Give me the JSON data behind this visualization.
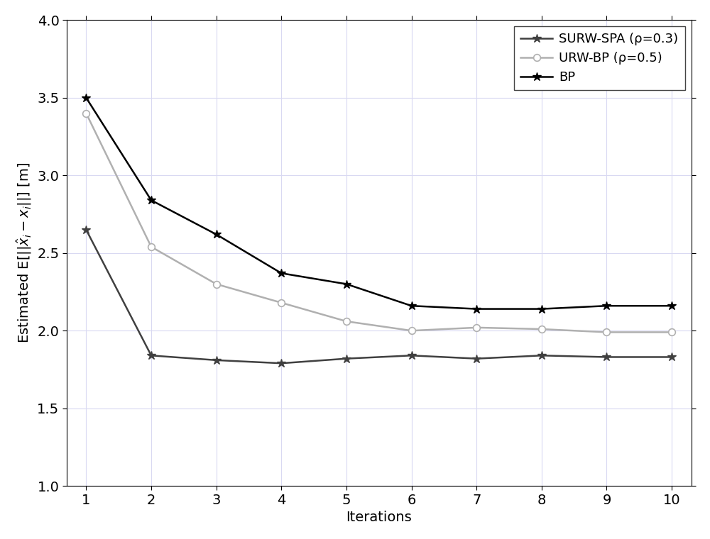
{
  "iterations": [
    1,
    2,
    3,
    4,
    5,
    6,
    7,
    8,
    9,
    10
  ],
  "surw_spa": [
    2.65,
    1.84,
    1.81,
    1.79,
    1.82,
    1.84,
    1.82,
    1.84,
    1.83,
    1.83
  ],
  "urw_bp": [
    3.4,
    2.54,
    2.3,
    2.18,
    2.06,
    2.0,
    2.02,
    2.01,
    1.99,
    1.99
  ],
  "bp": [
    3.5,
    2.84,
    2.62,
    2.37,
    2.3,
    2.16,
    2.14,
    2.14,
    2.16,
    2.16
  ],
  "surw_color": "#404040",
  "urw_color": "#b0b0b0",
  "bp_color": "#000000",
  "grid_color_r": 0.85,
  "grid_color_g": 0.85,
  "grid_color_b": 0.95,
  "axes_bg": "#ffffff",
  "fig_bg": "#ffffff",
  "xlabel": "Iterations",
  "ylabel": "Estimated E[||̅$\\hat{x}_i - x_i$||] [m]",
  "legend_labels": [
    "SURW-SPA (ρ=0.3)",
    "URW-BP (ρ=0.5)",
    "BP"
  ],
  "ylim": [
    1.0,
    4.0
  ],
  "xlim_min": 0.7,
  "xlim_max": 10.3,
  "yticks": [
    1.0,
    1.5,
    2.0,
    2.5,
    3.0,
    3.5,
    4.0
  ],
  "xticks": [
    1,
    2,
    3,
    4,
    5,
    6,
    7,
    8,
    9,
    10
  ],
  "tick_fontsize": 14,
  "label_fontsize": 14,
  "legend_fontsize": 13,
  "linewidth": 1.8,
  "markersize": 9
}
